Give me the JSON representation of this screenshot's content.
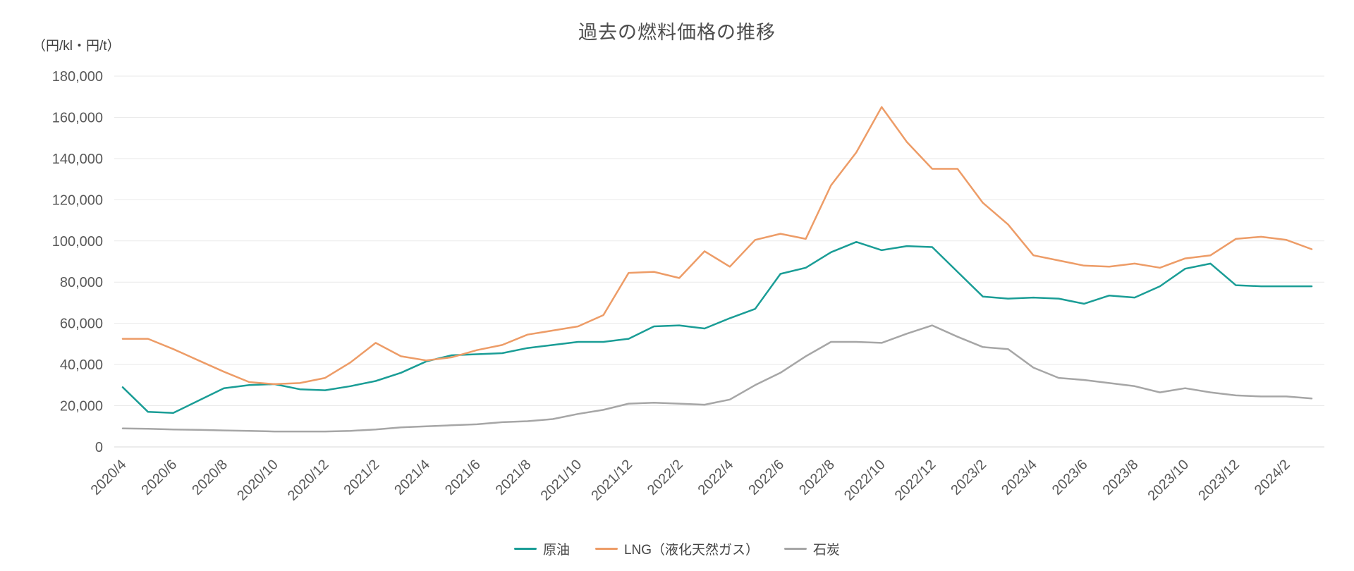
{
  "page": {
    "background": "#ffffff"
  },
  "chart_data": {
    "type": "line",
    "title": "過去の燃料価格の推移",
    "y_unit_label": "（円/kl・円/t）",
    "xlabel": "",
    "ylabel": "",
    "ylim": [
      0,
      180000
    ],
    "y_tick_step": 20000,
    "grid": "horizontal",
    "legend_position": "bottom",
    "x_tick_every": 2,
    "x": [
      "2020/4",
      "2020/5",
      "2020/6",
      "2020/7",
      "2020/8",
      "2020/9",
      "2020/10",
      "2020/11",
      "2020/12",
      "2021/1",
      "2021/2",
      "2021/3",
      "2021/4",
      "2021/5",
      "2021/6",
      "2021/7",
      "2021/8",
      "2021/9",
      "2021/10",
      "2021/11",
      "2021/12",
      "2022/1",
      "2022/2",
      "2022/3",
      "2022/4",
      "2022/5",
      "2022/6",
      "2022/7",
      "2022/8",
      "2022/9",
      "2022/10",
      "2022/11",
      "2022/12",
      "2023/1",
      "2023/2",
      "2023/3",
      "2023/4",
      "2023/5",
      "2023/6",
      "2023/7",
      "2023/8",
      "2023/9",
      "2023/10",
      "2023/11",
      "2023/12",
      "2024/1",
      "2024/2",
      "2024/3"
    ],
    "series": [
      {
        "name": "原油",
        "color": "#1a9d96",
        "values": [
          29000,
          17000,
          16500,
          22500,
          28500,
          30000,
          30500,
          28000,
          27500,
          29500,
          32000,
          36000,
          41500,
          44500,
          45000,
          45500,
          48000,
          49500,
          51000,
          51000,
          52500,
          58500,
          59000,
          57500,
          62500,
          67000,
          84000,
          87000,
          94500,
          99500,
          95500,
          97500,
          97000,
          85000,
          73000,
          72000,
          72500,
          72000,
          69500,
          73500,
          72500,
          78000,
          86500,
          89000,
          78500,
          78000,
          78000,
          78000
        ]
      },
      {
        "name": "LNG（液化天然ガス）",
        "color": "#ed9c67",
        "values": [
          52500,
          52500,
          47500,
          42000,
          36500,
          31500,
          30500,
          31000,
          33500,
          41000,
          50500,
          44000,
          42000,
          43500,
          47000,
          49500,
          54500,
          56500,
          58500,
          64000,
          84500,
          85000,
          82000,
          95000,
          87500,
          100500,
          103500,
          101000,
          127000,
          143000,
          165000,
          148000,
          135000,
          135000,
          118500,
          108000,
          93000,
          90500,
          88000,
          87500,
          89000,
          87000,
          91500,
          93000,
          101000,
          102000,
          100500,
          96000
        ]
      },
      {
        "name": "石炭",
        "color": "#a6a6a6",
        "values": [
          9000,
          8800,
          8500,
          8300,
          8000,
          7800,
          7500,
          7500,
          7500,
          7800,
          8500,
          9500,
          10000,
          10500,
          11000,
          12000,
          12500,
          13500,
          16000,
          18000,
          21000,
          21500,
          21000,
          20500,
          23000,
          30000,
          36000,
          44000,
          51000,
          51000,
          50500,
          55000,
          59000,
          53500,
          48500,
          47500,
          38500,
          33500,
          32500,
          31000,
          29500,
          26500,
          28500,
          26500,
          25000,
          24500,
          24500,
          23500
        ]
      }
    ],
    "axis_text_color": "#595959",
    "gridline_color": "#e9e9e9",
    "baseline_color": "#d9d9d9"
  }
}
